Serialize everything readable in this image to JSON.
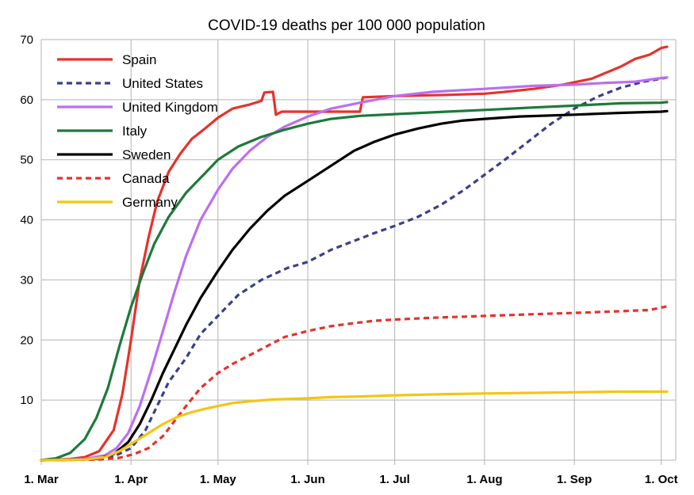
{
  "chart_data": {
    "type": "line",
    "title": "COVID-19 deaths per 100 000 population",
    "xlabel": "",
    "ylabel": "",
    "ylim": [
      0,
      70
    ],
    "yticks": [
      10,
      20,
      30,
      40,
      50,
      60,
      70
    ],
    "x_unit": "day of year 2020 (1 Mar = 0)",
    "xlim": [
      0,
      219
    ],
    "xticks": [
      {
        "label": "1. Mar",
        "day": 0
      },
      {
        "label": "1. Apr",
        "day": 31
      },
      {
        "label": "1. May",
        "day": 61
      },
      {
        "label": "1. Jun",
        "day": 92
      },
      {
        "label": "1. Jul",
        "day": 122
      },
      {
        "label": "1. Aug",
        "day": 153
      },
      {
        "label": "1. Sep",
        "day": 184
      },
      {
        "label": "1. Oct",
        "day": 214
      }
    ],
    "grid": true,
    "legend_position": "top-left",
    "series": [
      {
        "name": "Spain",
        "color": "#e8312b",
        "dash": "solid",
        "points": [
          [
            0,
            0
          ],
          [
            10,
            0.2
          ],
          [
            15,
            0.5
          ],
          [
            20,
            1.5
          ],
          [
            25,
            5
          ],
          [
            28,
            11
          ],
          [
            31,
            20
          ],
          [
            34,
            30
          ],
          [
            37,
            37
          ],
          [
            40,
            43
          ],
          [
            44,
            48
          ],
          [
            48,
            51
          ],
          [
            52,
            53.5
          ],
          [
            56,
            55
          ],
          [
            61,
            57
          ],
          [
            66,
            58.5
          ],
          [
            72,
            59.2
          ],
          [
            76,
            59.8
          ],
          [
            77,
            61.2
          ],
          [
            80,
            61.3
          ],
          [
            81,
            57.5
          ],
          [
            83,
            58
          ],
          [
            90,
            58
          ],
          [
            100,
            58
          ],
          [
            110,
            58
          ],
          [
            111,
            60.4
          ],
          [
            122,
            60.6
          ],
          [
            140,
            60.8
          ],
          [
            153,
            61
          ],
          [
            160,
            61.3
          ],
          [
            170,
            61.8
          ],
          [
            180,
            62.5
          ],
          [
            190,
            63.5
          ],
          [
            200,
            65.5
          ],
          [
            205,
            66.8
          ],
          [
            210,
            67.5
          ],
          [
            214,
            68.6
          ],
          [
            216,
            68.8
          ]
        ]
      },
      {
        "name": "United States",
        "color": "#3b3f8a",
        "dash": "dashed",
        "points": [
          [
            0,
            0
          ],
          [
            15,
            0.1
          ],
          [
            25,
            0.6
          ],
          [
            31,
            2
          ],
          [
            36,
            5
          ],
          [
            40,
            9
          ],
          [
            44,
            13
          ],
          [
            50,
            17
          ],
          [
            55,
            21
          ],
          [
            61,
            24
          ],
          [
            68,
            27.5
          ],
          [
            76,
            30
          ],
          [
            85,
            32
          ],
          [
            92,
            33
          ],
          [
            100,
            35
          ],
          [
            108,
            36.5
          ],
          [
            115,
            37.8
          ],
          [
            122,
            39
          ],
          [
            130,
            40.5
          ],
          [
            138,
            42.5
          ],
          [
            146,
            45
          ],
          [
            153,
            47.5
          ],
          [
            160,
            50
          ],
          [
            168,
            53
          ],
          [
            176,
            56
          ],
          [
            184,
            58.5
          ],
          [
            192,
            60.5
          ],
          [
            200,
            62
          ],
          [
            208,
            63
          ],
          [
            214,
            63.5
          ],
          [
            216,
            63.7
          ]
        ]
      },
      {
        "name": "United Kingdom",
        "color": "#bb6ff0",
        "dash": "solid",
        "points": [
          [
            0,
            0
          ],
          [
            15,
            0.2
          ],
          [
            22,
            0.8
          ],
          [
            26,
            2
          ],
          [
            30,
            4.5
          ],
          [
            34,
            9
          ],
          [
            38,
            15
          ],
          [
            42,
            21.5
          ],
          [
            46,
            28
          ],
          [
            50,
            34
          ],
          [
            55,
            40
          ],
          [
            61,
            45
          ],
          [
            66,
            48.5
          ],
          [
            72,
            51.5
          ],
          [
            78,
            53.8
          ],
          [
            84,
            55.5
          ],
          [
            92,
            57.2
          ],
          [
            100,
            58.5
          ],
          [
            110,
            59.5
          ],
          [
            122,
            60.6
          ],
          [
            135,
            61.3
          ],
          [
            153,
            61.8
          ],
          [
            170,
            62.3
          ],
          [
            184,
            62.5
          ],
          [
            195,
            62.8
          ],
          [
            205,
            63
          ],
          [
            214,
            63.6
          ],
          [
            216,
            63.7
          ]
        ]
      },
      {
        "name": "Italy",
        "color": "#1d7a3a",
        "dash": "solid",
        "points": [
          [
            0,
            0
          ],
          [
            5,
            0.3
          ],
          [
            10,
            1.2
          ],
          [
            15,
            3.5
          ],
          [
            19,
            7
          ],
          [
            23,
            12
          ],
          [
            27,
            19
          ],
          [
            31,
            25.5
          ],
          [
            35,
            31
          ],
          [
            39,
            36
          ],
          [
            44,
            40.5
          ],
          [
            50,
            44.5
          ],
          [
            56,
            47.5
          ],
          [
            61,
            50
          ],
          [
            68,
            52.2
          ],
          [
            76,
            53.8
          ],
          [
            84,
            55
          ],
          [
            92,
            56
          ],
          [
            100,
            56.8
          ],
          [
            110,
            57.3
          ],
          [
            122,
            57.6
          ],
          [
            140,
            58
          ],
          [
            153,
            58.3
          ],
          [
            170,
            58.7
          ],
          [
            184,
            59
          ],
          [
            200,
            59.4
          ],
          [
            214,
            59.5
          ],
          [
            216,
            59.6
          ]
        ]
      },
      {
        "name": "Sweden",
        "color": "#000000",
        "dash": "solid",
        "points": [
          [
            0,
            0
          ],
          [
            15,
            0.1
          ],
          [
            20,
            0.3
          ],
          [
            25,
            1
          ],
          [
            30,
            3
          ],
          [
            34,
            6
          ],
          [
            38,
            10
          ],
          [
            42,
            14.5
          ],
          [
            46,
            18.5
          ],
          [
            50,
            22.5
          ],
          [
            55,
            27
          ],
          [
            61,
            31.5
          ],
          [
            66,
            35
          ],
          [
            72,
            38.5
          ],
          [
            78,
            41.5
          ],
          [
            84,
            44
          ],
          [
            92,
            46.5
          ],
          [
            100,
            49
          ],
          [
            108,
            51.5
          ],
          [
            115,
            53
          ],
          [
            122,
            54.2
          ],
          [
            130,
            55.2
          ],
          [
            138,
            56
          ],
          [
            145,
            56.5
          ],
          [
            153,
            56.8
          ],
          [
            165,
            57.2
          ],
          [
            184,
            57.5
          ],
          [
            200,
            57.8
          ],
          [
            214,
            58
          ],
          [
            216,
            58.1
          ]
        ]
      },
      {
        "name": "Canada",
        "color": "#e8312b",
        "dash": "dashed",
        "points": [
          [
            0,
            0
          ],
          [
            20,
            0.1
          ],
          [
            27,
            0.4
          ],
          [
            32,
            1
          ],
          [
            37,
            2
          ],
          [
            42,
            4
          ],
          [
            46,
            6.5
          ],
          [
            50,
            9
          ],
          [
            55,
            12
          ],
          [
            61,
            14.5
          ],
          [
            66,
            16
          ],
          [
            72,
            17.5
          ],
          [
            78,
            19
          ],
          [
            84,
            20.5
          ],
          [
            92,
            21.5
          ],
          [
            100,
            22.3
          ],
          [
            108,
            22.8
          ],
          [
            115,
            23.2
          ],
          [
            122,
            23.4
          ],
          [
            135,
            23.7
          ],
          [
            153,
            24
          ],
          [
            170,
            24.3
          ],
          [
            184,
            24.5
          ],
          [
            200,
            24.8
          ],
          [
            210,
            25
          ],
          [
            214,
            25.4
          ],
          [
            216,
            25.6
          ]
        ]
      },
      {
        "name": "Germany",
        "color": "#f4c515",
        "dash": "solid",
        "points": [
          [
            0,
            0
          ],
          [
            15,
            0.1
          ],
          [
            22,
            0.5
          ],
          [
            27,
            1.5
          ],
          [
            32,
            3
          ],
          [
            37,
            4.5
          ],
          [
            42,
            6
          ],
          [
            47,
            7.2
          ],
          [
            52,
            8
          ],
          [
            57,
            8.6
          ],
          [
            61,
            9
          ],
          [
            66,
            9.5
          ],
          [
            72,
            9.8
          ],
          [
            80,
            10.1
          ],
          [
            92,
            10.3
          ],
          [
            100,
            10.5
          ],
          [
            110,
            10.6
          ],
          [
            122,
            10.8
          ],
          [
            140,
            11
          ],
          [
            153,
            11.1
          ],
          [
            170,
            11.2
          ],
          [
            184,
            11.3
          ],
          [
            200,
            11.4
          ],
          [
            214,
            11.4
          ],
          [
            216,
            11.4
          ]
        ]
      }
    ]
  }
}
